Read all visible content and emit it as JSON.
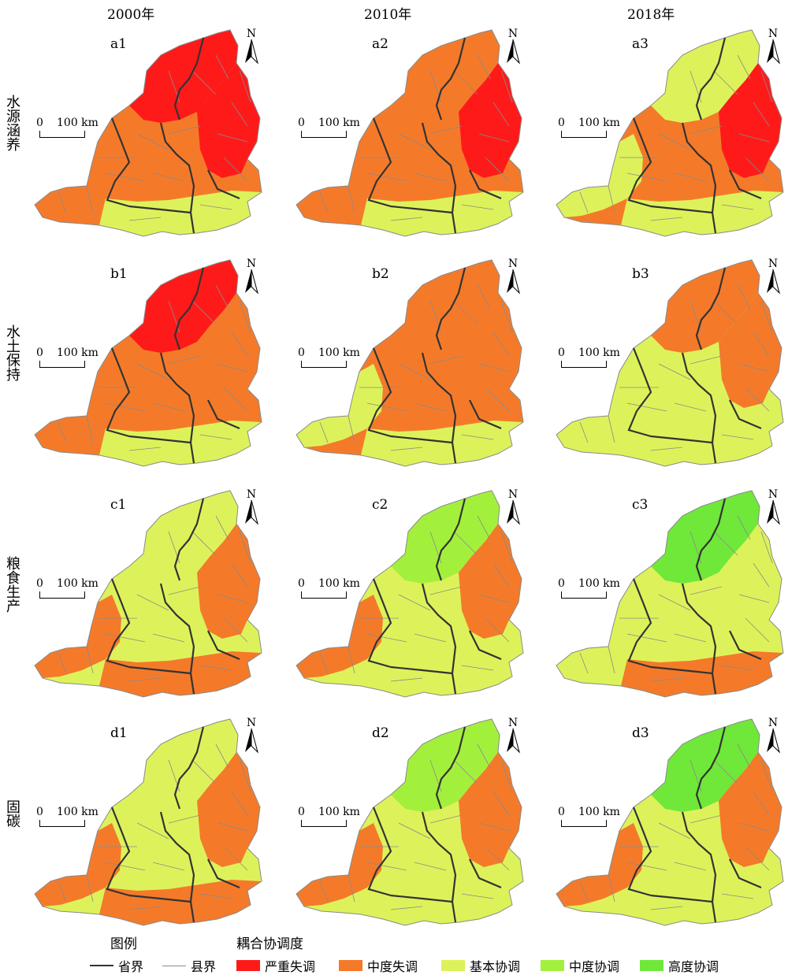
{
  "years": [
    "2000年",
    "2010年",
    "2018年"
  ],
  "rows": [
    {
      "label": "水源涵养",
      "panels": [
        "a1",
        "a2",
        "a3"
      ]
    },
    {
      "label": "水土保持",
      "panels": [
        "b1",
        "b2",
        "b3"
      ]
    },
    {
      "label": "粮食生产",
      "panels": [
        "c1",
        "c2",
        "c3"
      ]
    },
    {
      "label": "固碳",
      "panels": [
        "d1",
        "d2",
        "d3"
      ]
    }
  ],
  "scale_label": "0 100 km",
  "scale_zero": "0",
  "scale_text": "100 km",
  "north_label": "N",
  "legend": {
    "title": "图例",
    "coupling_title": "耦合协调度",
    "province_boundary": "省界",
    "county_boundary": "县界",
    "classes": [
      {
        "label": "严重失调",
        "color": "#ff1a1a"
      },
      {
        "label": "中度失调",
        "color": "#f47a2a"
      },
      {
        "label": "基本协调",
        "color": "#ddf25a"
      },
      {
        "label": "中度协调",
        "color": "#a3f03c"
      },
      {
        "label": "高度协调",
        "color": "#6fe83a"
      }
    ]
  },
  "colors": {
    "severe": "#ff1a1a",
    "moderate_imbalance": "#f47a2a",
    "basic": "#ddf25a",
    "moderate_coord": "#a3f03c",
    "high_coord": "#6fe83a",
    "province_line": "#333333",
    "county_line": "#8a8a8a"
  }
}
